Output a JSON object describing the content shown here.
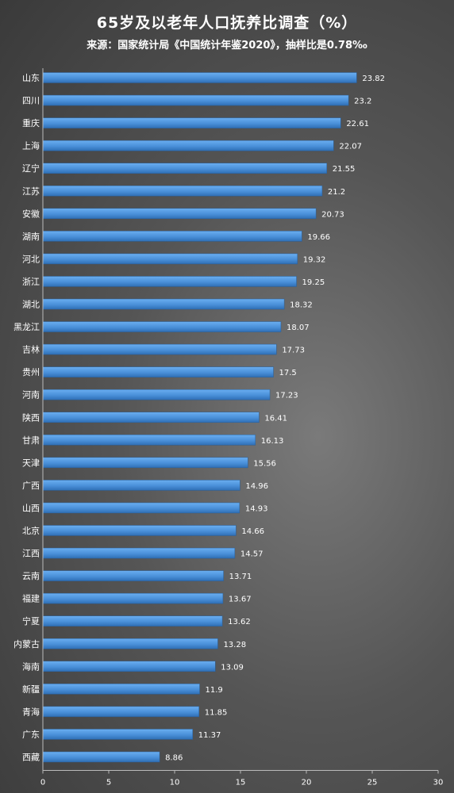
{
  "chart_data": {
    "type": "bar",
    "orientation": "horizontal",
    "title": "65岁及以老年人口抚养比调查（%）",
    "subtitle": "来源：国家统计局《中国统计年鉴2020》，抽样比是0.78‰",
    "categories": [
      "山东",
      "四川",
      "重庆",
      "上海",
      "辽宁",
      "江苏",
      "安徽",
      "湖南",
      "河北",
      "浙江",
      "湖北",
      "黑龙江",
      "吉林",
      "贵州",
      "河南",
      "陕西",
      "甘肃",
      "天津",
      "广西",
      "山西",
      "北京",
      "江西",
      "云南",
      "福建",
      "宁夏",
      "内蒙古",
      "海南",
      "新疆",
      "青海",
      "广东",
      "西藏"
    ],
    "values": [
      23.82,
      23.2,
      22.61,
      22.07,
      21.55,
      21.2,
      20.73,
      19.66,
      19.32,
      19.25,
      18.32,
      18.07,
      17.73,
      17.5,
      17.23,
      16.41,
      16.13,
      15.56,
      14.96,
      14.93,
      14.66,
      14.57,
      13.71,
      13.67,
      13.62,
      13.28,
      13.09,
      11.9,
      11.85,
      11.37,
      8.86
    ],
    "xlim": [
      0,
      30
    ],
    "xticks": [
      0,
      5,
      10,
      15,
      20,
      25,
      30
    ],
    "bar_color": "#4a90d9",
    "grid": false,
    "legend": "none"
  }
}
